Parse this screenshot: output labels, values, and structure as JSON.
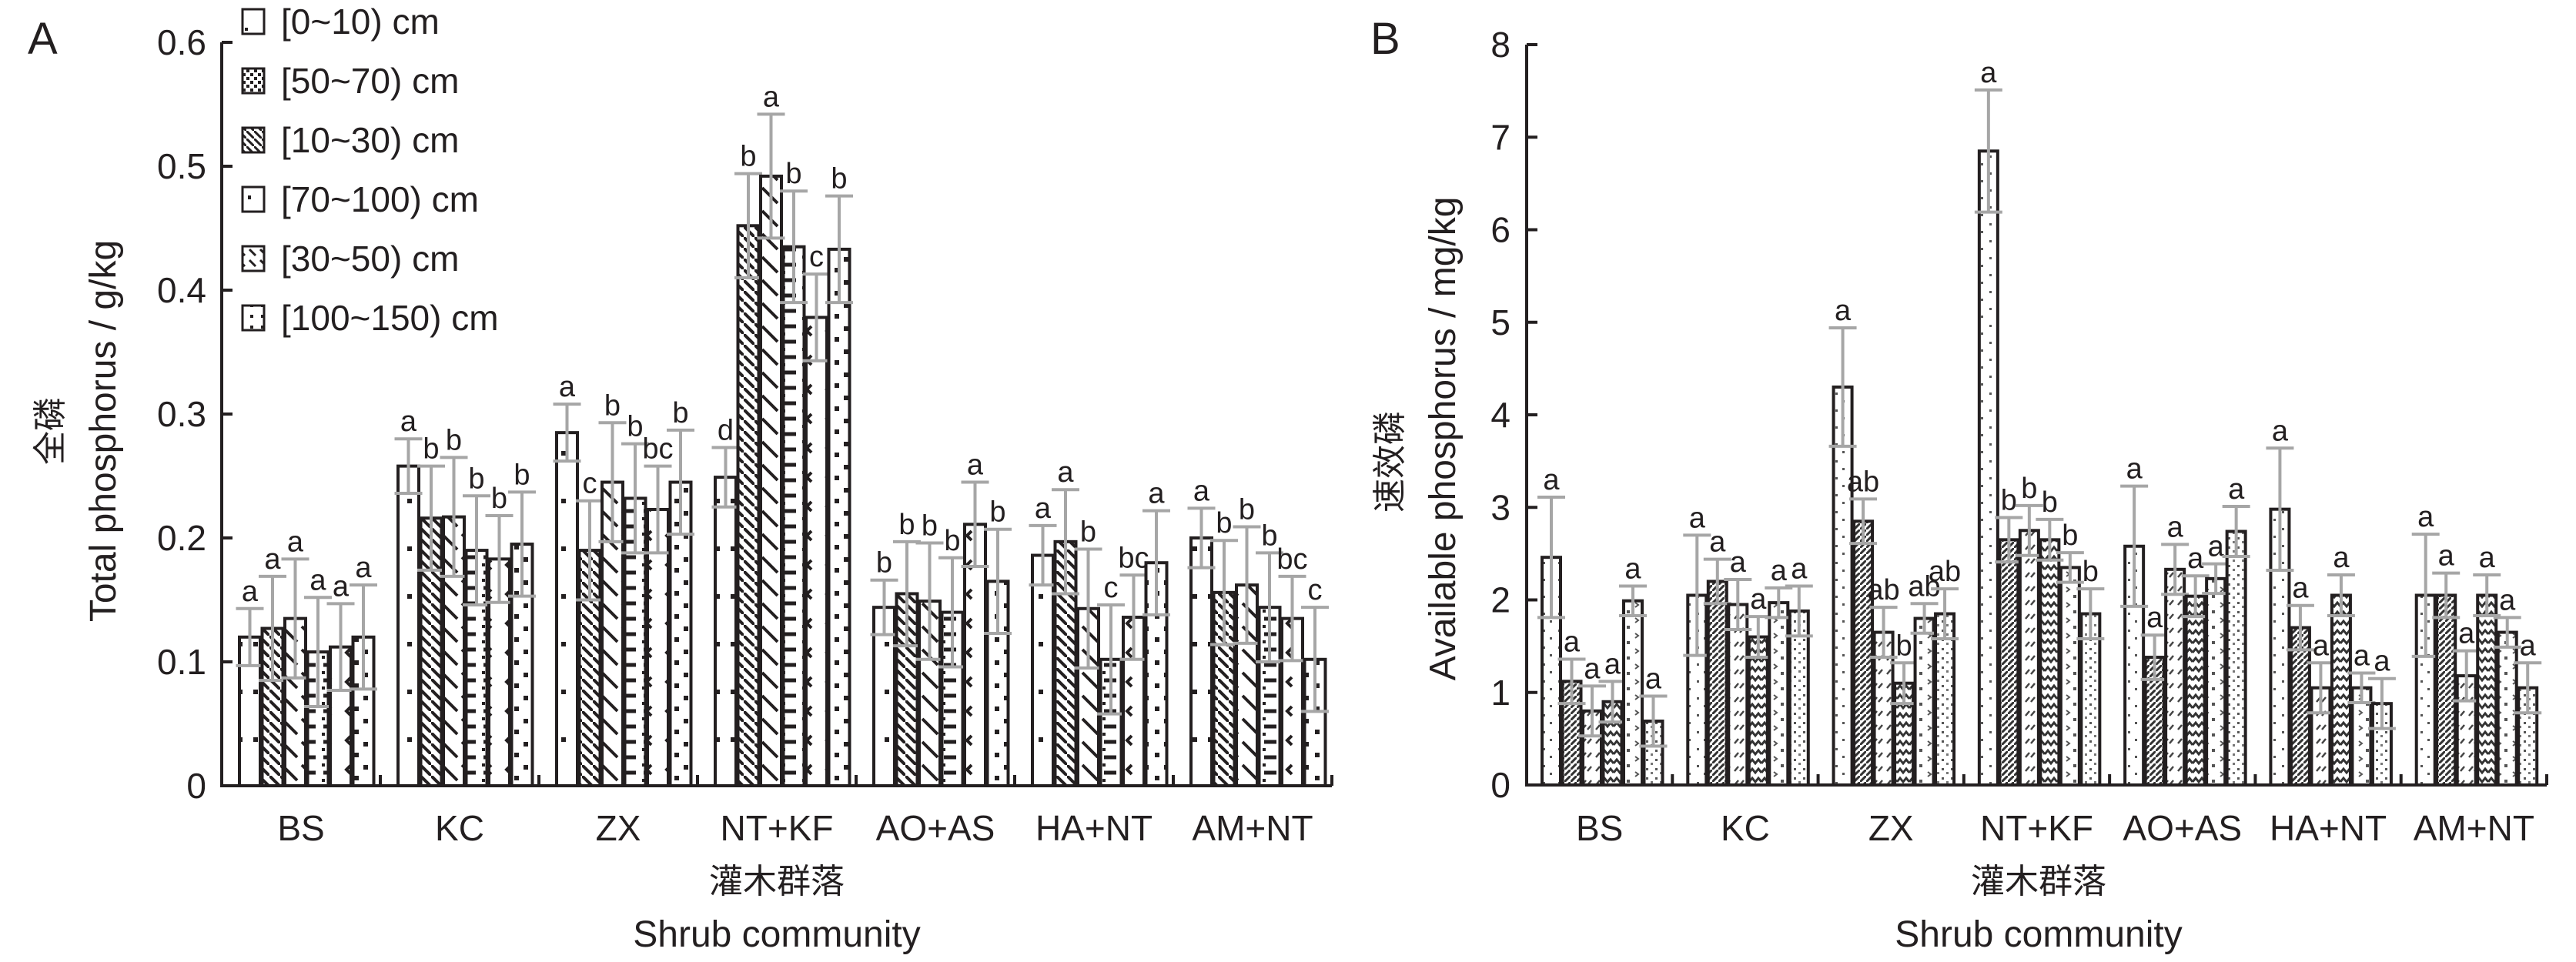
{
  "chart_data": [
    {
      "panel": "A",
      "type": "bar",
      "title": "",
      "ylabel_cn": "全磷",
      "ylabel": "Total phosphorus / g/kg",
      "xlabel_cn": "灌木群落",
      "xlabel": "Shrub community",
      "ylim": [
        0,
        0.6
      ],
      "yticks": [
        "0",
        "0.1",
        "0.2",
        "0.3",
        "0.4",
        "0.5",
        "0.6"
      ],
      "ytick_values": [
        0,
        0.1,
        0.2,
        0.3,
        0.4,
        0.5,
        0.6
      ],
      "categories": [
        "BS",
        "KC",
        "ZX",
        "NT+KF",
        "AO+AS",
        "HA+NT",
        "AM+NT"
      ],
      "legend_position": "top-left",
      "series": [
        {
          "name": "[0~10) cm",
          "values": [
            0.12,
            0.258,
            0.285,
            0.249,
            0.144,
            0.186,
            0.2
          ],
          "errors": [
            0.023,
            0.022,
            0.023,
            0.024,
            0.022,
            0.024,
            0.024
          ],
          "letters": [
            "a",
            "a",
            "a",
            "d",
            "b",
            "a",
            "a"
          ]
        },
        {
          "name": "[10~30) cm",
          "values": [
            0.127,
            0.216,
            0.19,
            0.452,
            0.155,
            0.197,
            0.156
          ],
          "errors": [
            0.042,
            0.042,
            0.04,
            0.042,
            0.042,
            0.042,
            0.042
          ],
          "letters": [
            "a",
            "b",
            "c",
            "b",
            "b",
            "a",
            "b"
          ]
        },
        {
          "name": "[30~50) cm",
          "values": [
            0.135,
            0.217,
            0.245,
            0.492,
            0.149,
            0.143,
            0.162
          ],
          "errors": [
            0.048,
            0.048,
            0.048,
            0.05,
            0.047,
            0.048,
            0.047
          ],
          "letters": [
            "a",
            "b",
            "b",
            "a",
            "b",
            "b",
            "b"
          ]
        },
        {
          "name": "[50~70) cm",
          "values": [
            0.108,
            0.19,
            0.232,
            0.435,
            0.14,
            0.102,
            0.144
          ],
          "errors": [
            0.044,
            0.044,
            0.044,
            0.045,
            0.044,
            0.044,
            0.044
          ],
          "letters": [
            "a",
            "b",
            "b",
            "b",
            "b",
            "c",
            "b"
          ]
        },
        {
          "name": "[70~100) cm",
          "values": [
            0.112,
            0.183,
            0.223,
            0.378,
            0.211,
            0.136,
            0.135
          ],
          "errors": [
            0.035,
            0.035,
            0.035,
            0.035,
            0.034,
            0.034,
            0.034
          ],
          "letters": [
            "a",
            "b",
            "bc",
            "c",
            "a",
            "bc",
            "bc"
          ]
        },
        {
          "name": "[100~150) cm",
          "values": [
            0.12,
            0.195,
            0.245,
            0.433,
            0.165,
            0.18,
            0.102
          ],
          "errors": [
            0.042,
            0.042,
            0.042,
            0.043,
            0.042,
            0.042,
            0.042
          ],
          "letters": [
            "a",
            "b",
            "b",
            "b",
            "b",
            "a",
            "c"
          ]
        }
      ]
    },
    {
      "panel": "B",
      "type": "bar",
      "title": "",
      "ylabel_cn": "速效磷",
      "ylabel": "Available phosphorus / mg/kg",
      "xlabel_cn": "灌木群落",
      "xlabel": "Shrub community",
      "ylim": [
        0,
        8
      ],
      "yticks": [
        "0",
        "1",
        "2",
        "3",
        "4",
        "5",
        "6",
        "7",
        "8"
      ],
      "ytick_values": [
        0,
        1,
        2,
        3,
        4,
        5,
        6,
        7,
        8
      ],
      "categories": [
        "BS",
        "KC",
        "ZX",
        "NT+KF",
        "AO+AS",
        "HA+NT",
        "AM+NT"
      ],
      "series": [
        {
          "name": "[0~10) cm",
          "values": [
            2.46,
            2.05,
            4.3,
            6.85,
            2.58,
            2.98,
            2.05
          ],
          "errors": [
            0.65,
            0.65,
            0.64,
            0.66,
            0.65,
            0.66,
            0.66
          ],
          "letters": [
            "a",
            "a",
            "a",
            "a",
            "a",
            "a",
            "a"
          ]
        },
        {
          "name": "[10~30) cm",
          "values": [
            1.12,
            2.2,
            2.85,
            2.65,
            1.38,
            1.7,
            2.05
          ],
          "errors": [
            0.24,
            0.24,
            0.24,
            0.24,
            0.24,
            0.24,
            0.24
          ],
          "letters": [
            "a",
            "a",
            "ab",
            "b",
            "a",
            "a",
            "a"
          ]
        },
        {
          "name": "[30~50) cm",
          "values": [
            0.8,
            1.95,
            1.65,
            2.75,
            2.33,
            1.05,
            1.18
          ],
          "errors": [
            0.27,
            0.27,
            0.27,
            0.27,
            0.27,
            0.27,
            0.27
          ],
          "letters": [
            "a",
            "a",
            "ab",
            "b",
            "a",
            "a",
            "a"
          ]
        },
        {
          "name": "[50~70) cm",
          "values": [
            0.9,
            1.6,
            1.1,
            2.65,
            2.04,
            2.05,
            2.05
          ],
          "errors": [
            0.22,
            0.22,
            0.22,
            0.22,
            0.22,
            0.22,
            0.22
          ],
          "letters": [
            "a",
            "a",
            "b",
            "b",
            "a",
            "a",
            "a"
          ]
        },
        {
          "name": "[70~100) cm",
          "values": [
            1.99,
            1.97,
            1.8,
            2.35,
            2.23,
            1.05,
            1.65
          ],
          "errors": [
            0.16,
            0.16,
            0.16,
            0.16,
            0.16,
            0.16,
            0.16
          ],
          "letters": [
            "a",
            "a",
            "ab",
            "b",
            "a",
            "a",
            "a"
          ]
        },
        {
          "name": "[100~150) cm",
          "values": [
            0.69,
            1.88,
            1.85,
            1.85,
            2.74,
            0.88,
            1.05
          ],
          "errors": [
            0.27,
            0.27,
            0.27,
            0.27,
            0.27,
            0.27,
            0.27
          ],
          "letters": [
            "a",
            "a",
            "ab",
            "b",
            "a",
            "a",
            "a"
          ]
        }
      ]
    }
  ],
  "legend": {
    "items": [
      "[0~10) cm",
      "[50~70) cm",
      "[10~30) cm",
      "[70~100) cm",
      "[30~50) cm",
      "[100~150) cm"
    ]
  },
  "panels": {
    "a_letter": "A",
    "b_letter": "B"
  },
  "colors": {
    "ink": "#231f20",
    "error_bar": "#a6a6a6",
    "background": "#ffffff"
  }
}
